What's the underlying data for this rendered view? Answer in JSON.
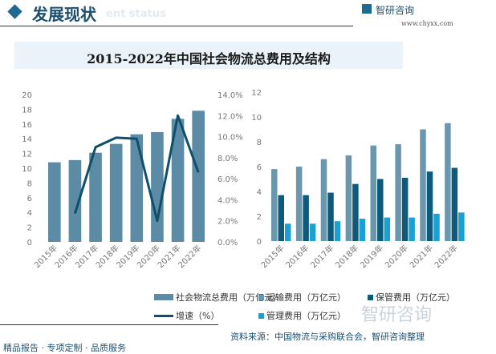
{
  "header": {
    "title": "发展现状",
    "subtitle": "ent status",
    "brand": "智研咨询",
    "brand_url": "www.chyxx.com"
  },
  "chart_title": "2015-2022年中国社会物流总费用及结构",
  "colors": {
    "total": "#5b8ba5",
    "growth": "#0f4f6b",
    "transport": "#6a97ae",
    "storage": "#0e5a7a",
    "admin": "#1ba0d2"
  },
  "chart_data": [
    {
      "type": "bar+line",
      "categories": [
        "2015年",
        "2016年",
        "2017年",
        "2018年",
        "2019年",
        "2020年",
        "2021年",
        "2022年"
      ],
      "series": [
        {
          "name": "社会物流总费用（万亿元）",
          "type": "bar",
          "axis": "left",
          "values": [
            10.8,
            11.1,
            12.1,
            13.3,
            14.6,
            14.9,
            16.7,
            17.8
          ]
        },
        {
          "name": "增速（%）",
          "type": "line",
          "axis": "right",
          "values": [
            null,
            2.7,
            9.0,
            9.9,
            9.8,
            2.0,
            12.0,
            6.6
          ]
        }
      ],
      "ylim": [
        0,
        20
      ],
      "yticks": [
        0,
        2,
        4,
        6,
        8,
        10,
        12,
        14,
        16,
        18,
        20
      ],
      "y2lim": [
        0,
        14
      ],
      "y2ticks": [
        "0.0%",
        "2.0%",
        "4.0%",
        "6.0%",
        "8.0%",
        "10.0%",
        "12.0%",
        "14.0%"
      ],
      "legend": "bottom",
      "grid": false
    },
    {
      "type": "bar",
      "categories": [
        "2015年",
        "2016年",
        "2017年",
        "2018年",
        "2019年",
        "2020年",
        "2021年",
        "2022年"
      ],
      "series": [
        {
          "name": "运输费用（万亿元）",
          "values": [
            5.8,
            6.0,
            6.6,
            6.9,
            7.7,
            7.8,
            9.0,
            9.5
          ]
        },
        {
          "name": "保管费用（万亿元）",
          "values": [
            3.7,
            3.7,
            3.9,
            4.6,
            5.0,
            5.1,
            5.6,
            5.9
          ]
        },
        {
          "name": "管理费用（万亿元）",
          "values": [
            1.4,
            1.4,
            1.6,
            1.8,
            1.9,
            1.9,
            2.2,
            2.3
          ]
        }
      ],
      "ylim": [
        0,
        12
      ],
      "yticks": [
        0,
        2,
        4,
        6,
        8,
        10,
        12
      ],
      "legend": "bottom",
      "grid": false
    }
  ],
  "footer": {
    "left": "精品报告 · 专项定制 · 品质服务",
    "source": "资料来源：中国物流与采购联合会，智研咨询整理",
    "watermark": "智研咨询"
  }
}
